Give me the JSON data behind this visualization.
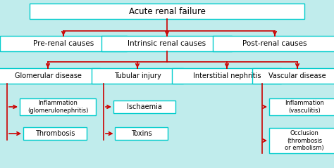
{
  "bg_color": "#c0ecec",
  "box_face": "#ffffff",
  "box_edge": "#00cccc",
  "arrow_color": "#cc0000",
  "text_color": "#000000",
  "title": "Acute renal failure",
  "level1": [
    "Pre-renal causes",
    "Intrinsic renal causes",
    "Post-renal causes"
  ],
  "level2": [
    "Glomerular disease",
    "Tubular injury",
    "Interstitial nephritis",
    "Vascular disease"
  ],
  "l3_glom": [
    "Inflammation\n(glomerulonephritis)",
    "Thrombosis"
  ],
  "l3_tub": [
    "Ischaemia",
    "Toxins"
  ],
  "l3_vasc": [
    "Inflammation\n(vasculitis)",
    "Occlusion\n(thrombosis\nor embolism)"
  ]
}
